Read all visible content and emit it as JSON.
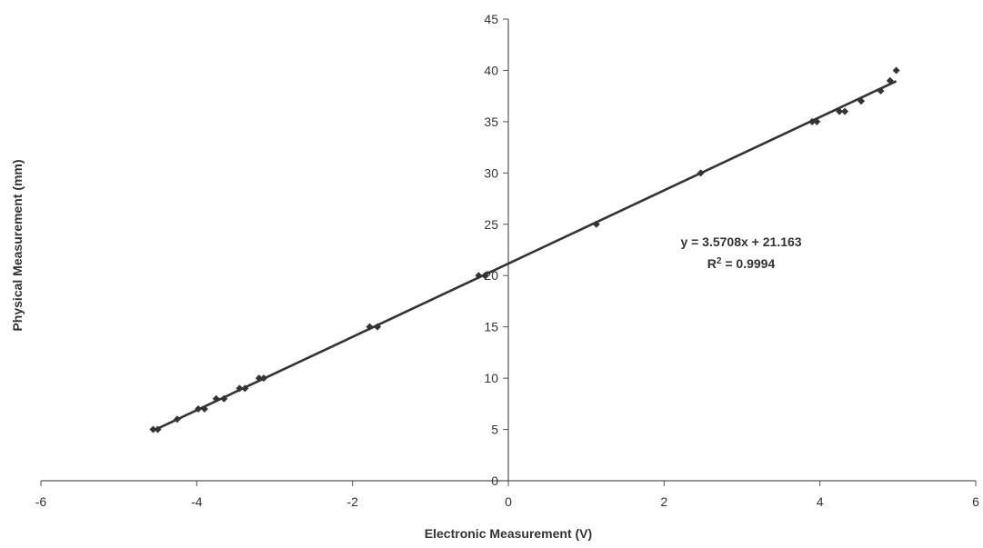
{
  "chart_data": {
    "type": "scatter",
    "title": "",
    "xlabel": "Electronic Measurement (V)",
    "ylabel": "Physical Measurement (mm)",
    "xlim": [
      -6,
      6
    ],
    "ylim": [
      0,
      45
    ],
    "x_ticks": [
      -6,
      -4,
      -2,
      0,
      2,
      4,
      6
    ],
    "y_ticks": [
      0,
      5,
      10,
      15,
      20,
      25,
      30,
      35,
      40,
      45
    ],
    "grid": false,
    "legend": "none",
    "colors": {
      "points": "#333333",
      "trendline": "#333333",
      "axis": "#555555"
    },
    "series": [
      {
        "x": [
          -4.56,
          -4.5,
          -4.25,
          -3.98,
          -3.9,
          -3.75,
          -3.65,
          -3.45,
          -3.38,
          -3.2,
          -3.14,
          -1.78,
          -1.68,
          -0.38,
          -0.3,
          1.13,
          2.47,
          3.9,
          3.96,
          4.25,
          4.32,
          4.53,
          4.78,
          4.9,
          4.98
        ],
        "y": [
          5,
          5,
          6,
          7,
          7,
          8,
          8,
          9,
          9,
          10,
          10,
          15,
          15,
          20,
          20,
          25,
          30,
          35,
          35,
          36,
          36,
          37,
          38,
          39,
          40
        ]
      }
    ],
    "trendline": {
      "slope": 3.5708,
      "intercept": 21.163,
      "x_range": [
        -4.56,
        4.98
      ]
    },
    "annotations": {
      "equation": "y = 3.5708x + 21.163",
      "r2_prefix": "R",
      "r2_exp": "2",
      "r2_value": " = 0.9994"
    }
  }
}
